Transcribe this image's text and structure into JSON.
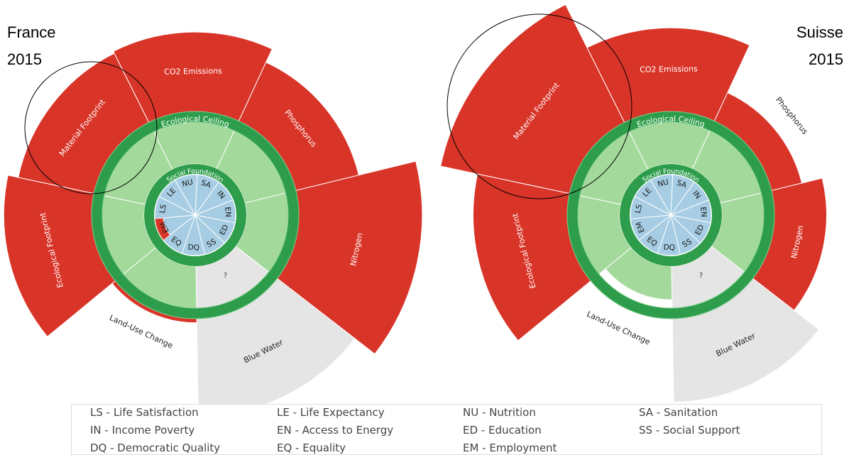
{
  "chart_data": [
    {
      "type": "doughnut",
      "title": "France",
      "subtitle": "2015",
      "ceiling_label": "Ecological Ceiling",
      "foundation_label": "Social Foundation",
      "safe_color": "#a3d99b",
      "ring_color": "#2e9d4b",
      "foundation_color": "#a6cde3",
      "shortfall_color": "#d93428",
      "unknown_color": "#e5e5e5",
      "ecological": {
        "categories": [
          "Material Footprint",
          "CO2 Emissions",
          "Phosphorus",
          "Nitrogen",
          "Blue Water",
          "Land-Use Change",
          "Ecological Footprint"
        ],
        "values": [
          3.1,
          3.15,
          2.8,
          4.2,
          3.6,
          1.35,
          3.35
        ],
        "colors": [
          "#d93428",
          "#d93428",
          "#d93428",
          "#d93428",
          "#e5e5e5",
          "#d93428",
          "#d93428"
        ],
        "inner_labels": [
          null,
          null,
          null,
          null,
          "?",
          null,
          null
        ]
      },
      "social": {
        "categories": [
          "LS",
          "LE",
          "NU",
          "SA",
          "IN",
          "EN",
          "ED",
          "SS",
          "DQ",
          "EQ",
          "EM"
        ],
        "values": [
          1,
          1,
          1,
          1,
          1,
          1,
          1,
          1,
          1,
          1,
          0.8
        ]
      }
    },
    {
      "type": "doughnut",
      "title": "Suisse",
      "subtitle": "2015",
      "ceiling_label": "Ecological Ceiling",
      "foundation_label": "Social Foundation",
      "safe_color": "#a3d99b",
      "ring_color": "#2e9d4b",
      "foundation_color": "#a6cde3",
      "shortfall_color": "#d93428",
      "unknown_color": "#e5e5e5",
      "ecological": {
        "categories": [
          "Material Footprint",
          "CO2 Emissions",
          "Phosphorus",
          "Nitrogen",
          "Blue Water",
          "Land-Use Change",
          "Ecological Footprint"
        ],
        "values": [
          4.4,
          3.25,
          2.0,
          2.5,
          3.25,
          0.8,
          3.5
        ],
        "colors": [
          "#d93428",
          "#d93428",
          "#d93428",
          "#d93428",
          "#e5e5e5",
          "#d93428",
          "#d93428"
        ],
        "inner_labels": [
          null,
          null,
          null,
          null,
          "?",
          null,
          null
        ]
      },
      "social": {
        "categories": [
          "LS",
          "LE",
          "NU",
          "SA",
          "IN",
          "EN",
          "ED",
          "SS",
          "DQ",
          "EQ",
          "EM"
        ],
        "values": [
          1,
          1,
          1,
          1,
          1,
          1,
          1,
          1,
          1,
          1,
          1
        ]
      }
    }
  ],
  "legend": [
    "LS - Life Satisfaction",
    "LE - Life Expectancy",
    "NU - Nutrition",
    "SA - Sanitation",
    "IN - Income Poverty",
    "EN - Access to Energy",
    "ED - Education",
    "SS - Social Support",
    "DQ - Democratic Quality",
    "EQ - Equality",
    "EM - Employment"
  ]
}
